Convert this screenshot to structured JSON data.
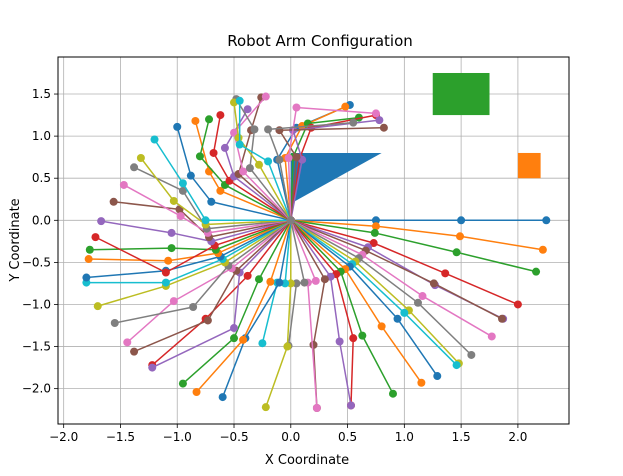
{
  "chart_data": {
    "type": "line",
    "title": "Robot Arm Configuration",
    "xlabel": "X Coordinate",
    "ylabel": "Y Coordinate",
    "xlim": [
      -2.05,
      2.45
    ],
    "ylim": [
      -2.42,
      1.94
    ],
    "x_ticks": [
      -2.0,
      -1.5,
      -1.0,
      -0.5,
      0.0,
      0.5,
      1.0,
      1.5,
      2.0
    ],
    "x_tick_labels": [
      "−2.0",
      "−1.5",
      "−1.0",
      "−0.5",
      "0.0",
      "0.5",
      "1.0",
      "1.5",
      "2.0"
    ],
    "y_ticks": [
      -2.0,
      -1.5,
      -1.0,
      -0.5,
      0.0,
      0.5,
      1.0,
      1.5
    ],
    "y_tick_labels": [
      "−2.0",
      "−1.5",
      "−1.0",
      "−0.5",
      "0.0",
      "0.5",
      "1.0",
      "1.5"
    ],
    "grid": true,
    "palette": [
      "#1f77b4",
      "#ff7f0e",
      "#2ca02c",
      "#d62728",
      "#9467bd",
      "#8c564b",
      "#e377c2",
      "#7f7f7f",
      "#bcbd22",
      "#17becf"
    ],
    "obstacles": [
      {
        "shape": "triangle",
        "color": "#1f77b4",
        "points": [
          [
            0.0,
            0.2
          ],
          [
            0.0,
            0.8
          ],
          [
            0.8,
            0.8
          ]
        ]
      },
      {
        "shape": "rect",
        "color": "#2ca02c",
        "x": 1.25,
        "y": 1.25,
        "w": 0.5,
        "h": 0.5
      },
      {
        "shape": "rect",
        "color": "#ff7f0e",
        "x": 2.0,
        "y": 0.5,
        "w": 0.2,
        "h": 0.3
      }
    ],
    "series": [
      {
        "values": [
          [
            0,
            0
          ],
          [
            0.75,
            0.0
          ],
          [
            1.5,
            0.0
          ],
          [
            2.25,
            0.0
          ]
        ]
      },
      {
        "values": [
          [
            0,
            0
          ],
          [
            0.75,
            -0.07
          ],
          [
            1.49,
            -0.19
          ],
          [
            2.22,
            -0.35
          ]
        ]
      },
      {
        "values": [
          [
            0,
            0
          ],
          [
            0.74,
            -0.15
          ],
          [
            1.46,
            -0.38
          ],
          [
            2.16,
            -0.61
          ]
        ]
      },
      {
        "values": [
          [
            0,
            0
          ],
          [
            0.73,
            -0.27
          ],
          [
            1.36,
            -0.63
          ],
          [
            2.0,
            -1.0
          ]
        ]
      },
      {
        "values": [
          [
            0,
            0
          ],
          [
            0.68,
            -0.32
          ],
          [
            1.27,
            -0.77
          ],
          [
            1.87,
            -1.17
          ]
        ]
      },
      {
        "values": [
          [
            0,
            0
          ],
          [
            0.66,
            -0.36
          ],
          [
            1.26,
            -0.75
          ],
          [
            1.86,
            -1.17
          ]
        ]
      },
      {
        "values": [
          [
            0,
            0
          ],
          [
            0.63,
            -0.41
          ],
          [
            1.16,
            -0.9
          ],
          [
            1.77,
            -1.38
          ]
        ]
      },
      {
        "values": [
          [
            0,
            0
          ],
          [
            0.6,
            -0.45
          ],
          [
            1.12,
            -0.98
          ],
          [
            1.59,
            -1.6
          ]
        ]
      },
      {
        "values": [
          [
            0,
            0
          ],
          [
            0.57,
            -0.49
          ],
          [
            1.04,
            -1.07
          ],
          [
            1.48,
            -1.7
          ]
        ]
      },
      {
        "values": [
          [
            0,
            0
          ],
          [
            0.54,
            -0.52
          ],
          [
            1.0,
            -1.1
          ],
          [
            1.46,
            -1.72
          ]
        ]
      },
      {
        "values": [
          [
            0,
            0
          ],
          [
            0.52,
            -0.55
          ],
          [
            0.94,
            -1.17
          ],
          [
            1.29,
            -1.85
          ]
        ]
      },
      {
        "values": [
          [
            0,
            0
          ],
          [
            0.48,
            -0.58
          ],
          [
            0.8,
            -1.26
          ],
          [
            1.15,
            -1.93
          ]
        ]
      },
      {
        "values": [
          [
            0,
            0
          ],
          [
            0.44,
            -0.61
          ],
          [
            0.63,
            -1.37
          ],
          [
            0.9,
            -2.06
          ]
        ]
      },
      {
        "values": [
          [
            0,
            0
          ],
          [
            0.4,
            -0.64
          ],
          [
            0.55,
            -1.4
          ],
          [
            0.53,
            -2.2
          ]
        ]
      },
      {
        "values": [
          [
            0,
            0
          ],
          [
            0.35,
            -0.67
          ],
          [
            0.43,
            -1.44
          ],
          [
            0.53,
            -2.2
          ]
        ]
      },
      {
        "values": [
          [
            0,
            0
          ],
          [
            0.3,
            -0.7
          ],
          [
            0.2,
            -1.48
          ],
          [
            0.23,
            -2.23
          ]
        ]
      },
      {
        "values": [
          [
            0,
            0
          ],
          [
            0.22,
            -0.72
          ],
          [
            0.15,
            -0.74
          ],
          [
            0.23,
            -2.23
          ]
        ]
      },
      {
        "values": [
          [
            0,
            0
          ],
          [
            0.12,
            -0.74
          ],
          [
            0.05,
            -0.75
          ],
          [
            -0.02,
            -1.49
          ]
        ]
      },
      {
        "values": [
          [
            0,
            0
          ],
          [
            0.0,
            -0.75
          ],
          [
            -0.03,
            -1.5
          ],
          [
            -0.22,
            -2.22
          ]
        ]
      },
      {
        "values": [
          [
            0,
            0
          ],
          [
            -0.05,
            -0.75
          ],
          [
            -0.12,
            -0.74
          ],
          [
            -0.25,
            -1.46
          ]
        ]
      },
      {
        "values": [
          [
            0,
            0
          ],
          [
            -0.1,
            -0.74
          ],
          [
            -0.4,
            -1.4
          ],
          [
            -0.6,
            -2.1
          ]
        ]
      },
      {
        "values": [
          [
            0,
            0
          ],
          [
            -0.18,
            -0.73
          ],
          [
            -0.42,
            -1.42
          ],
          [
            -0.83,
            -2.04
          ]
        ]
      },
      {
        "values": [
          [
            0,
            0
          ],
          [
            -0.28,
            -0.7
          ],
          [
            -0.5,
            -1.4
          ],
          [
            -0.95,
            -1.94
          ]
        ]
      },
      {
        "values": [
          [
            0,
            0
          ],
          [
            -0.38,
            -0.66
          ],
          [
            -0.75,
            -1.17
          ],
          [
            -1.22,
            -1.72
          ]
        ]
      },
      {
        "values": [
          [
            0,
            0
          ],
          [
            -0.45,
            -0.62
          ],
          [
            -0.5,
            -1.28
          ],
          [
            -1.22,
            -1.75
          ]
        ]
      },
      {
        "values": [
          [
            0,
            0
          ],
          [
            -0.48,
            -0.6
          ],
          [
            -0.73,
            -1.19
          ],
          [
            -1.38,
            -1.56
          ]
        ]
      },
      {
        "values": [
          [
            0,
            0
          ],
          [
            -0.52,
            -0.57
          ],
          [
            -1.03,
            -0.96
          ],
          [
            -1.44,
            -1.45
          ]
        ]
      },
      {
        "values": [
          [
            0,
            0
          ],
          [
            -0.55,
            -0.54
          ],
          [
            -0.86,
            -1.03
          ],
          [
            -1.55,
            -1.22
          ]
        ]
      },
      {
        "values": [
          [
            0,
            0
          ],
          [
            -0.58,
            -0.5
          ],
          [
            -1.1,
            -0.78
          ],
          [
            -1.7,
            -1.02
          ]
        ]
      },
      {
        "values": [
          [
            0,
            0
          ],
          [
            -0.6,
            -0.46
          ],
          [
            -1.1,
            -0.74
          ],
          [
            -1.8,
            -0.74
          ]
        ]
      },
      {
        "values": [
          [
            0,
            0
          ],
          [
            -0.62,
            -0.43
          ],
          [
            -1.1,
            -0.6
          ],
          [
            -1.8,
            -0.68
          ]
        ]
      },
      {
        "values": [
          [
            0,
            0
          ],
          [
            -0.64,
            -0.39
          ],
          [
            -1.08,
            -0.48
          ],
          [
            -1.78,
            -0.46
          ]
        ]
      },
      {
        "values": [
          [
            0,
            0
          ],
          [
            -0.66,
            -0.35
          ],
          [
            -1.05,
            -0.33
          ],
          [
            -1.77,
            -0.35
          ]
        ]
      },
      {
        "values": [
          [
            0,
            0
          ],
          [
            -0.67,
            -0.3
          ],
          [
            -1.1,
            -0.62
          ],
          [
            -1.72,
            -0.2
          ]
        ]
      },
      {
        "values": [
          [
            0,
            0
          ],
          [
            -0.7,
            -0.25
          ],
          [
            -1.05,
            -0.15
          ],
          [
            -1.67,
            -0.01
          ]
        ]
      },
      {
        "values": [
          [
            0,
            0
          ],
          [
            -0.72,
            -0.2
          ],
          [
            -0.98,
            0.13
          ],
          [
            -1.56,
            0.22
          ]
        ]
      },
      {
        "values": [
          [
            0,
            0
          ],
          [
            -0.73,
            -0.15
          ],
          [
            -0.97,
            0.05
          ],
          [
            -1.47,
            0.42
          ]
        ]
      },
      {
        "values": [
          [
            0,
            0
          ],
          [
            -0.74,
            -0.1
          ],
          [
            -0.95,
            0.35
          ],
          [
            -1.38,
            0.63
          ]
        ]
      },
      {
        "values": [
          [
            0,
            0
          ],
          [
            -0.75,
            -0.05
          ],
          [
            -1.03,
            0.23
          ],
          [
            -1.32,
            0.74
          ]
        ]
      },
      {
        "values": [
          [
            0,
            0
          ],
          [
            -0.75,
            0.0
          ],
          [
            -0.95,
            0.44
          ],
          [
            -1.2,
            0.96
          ]
        ]
      },
      {
        "values": [
          [
            0,
            0
          ],
          [
            -0.7,
            0.22
          ],
          [
            -0.88,
            0.53
          ],
          [
            -1.0,
            1.11
          ]
        ]
      },
      {
        "values": [
          [
            0,
            0
          ],
          [
            -0.62,
            0.35
          ],
          [
            -0.72,
            0.58
          ],
          [
            -0.84,
            1.18
          ]
        ]
      },
      {
        "values": [
          [
            0,
            0
          ],
          [
            -0.58,
            0.42
          ],
          [
            -0.8,
            0.76
          ],
          [
            -0.72,
            1.2
          ]
        ]
      },
      {
        "values": [
          [
            0,
            0
          ],
          [
            -0.54,
            0.47
          ],
          [
            -0.68,
            0.8
          ],
          [
            -0.62,
            1.25
          ]
        ]
      },
      {
        "values": [
          [
            0,
            0
          ],
          [
            -0.5,
            0.52
          ],
          [
            -0.58,
            0.86
          ],
          [
            -0.38,
            1.32
          ]
        ]
      },
      {
        "values": [
          [
            0,
            0
          ],
          [
            -0.46,
            0.55
          ],
          [
            -0.35,
            1.07
          ],
          [
            -0.26,
            1.46
          ]
        ]
      },
      {
        "values": [
          [
            0,
            0
          ],
          [
            -0.42,
            0.58
          ],
          [
            -0.5,
            1.04
          ],
          [
            -0.22,
            1.47
          ]
        ]
      },
      {
        "values": [
          [
            0,
            0
          ],
          [
            -0.36,
            0.62
          ],
          [
            -0.32,
            1.08
          ],
          [
            -0.48,
            1.44
          ]
        ]
      },
      {
        "values": [
          [
            0,
            0
          ],
          [
            -0.28,
            0.66
          ],
          [
            -0.46,
            0.98
          ],
          [
            -0.5,
            1.4
          ]
        ]
      },
      {
        "values": [
          [
            0,
            0
          ],
          [
            -0.2,
            0.7
          ],
          [
            -0.45,
            0.9
          ],
          [
            -0.45,
            1.42
          ]
        ]
      },
      {
        "values": [
          [
            0,
            0
          ],
          [
            -0.12,
            0.72
          ],
          [
            0.05,
            1.1
          ],
          [
            0.52,
            1.37
          ]
        ]
      },
      {
        "values": [
          [
            0,
            0
          ],
          [
            -0.05,
            0.74
          ],
          [
            0.1,
            1.12
          ],
          [
            0.48,
            1.35
          ]
        ]
      },
      {
        "values": [
          [
            0,
            0
          ],
          [
            0.02,
            0.75
          ],
          [
            0.15,
            1.15
          ],
          [
            0.6,
            1.22
          ]
        ]
      },
      {
        "values": [
          [
            0,
            0
          ],
          [
            0.08,
            0.74
          ],
          [
            0.18,
            1.1
          ],
          [
            0.75,
            1.25
          ]
        ]
      },
      {
        "values": [
          [
            0,
            0
          ],
          [
            0.1,
            0.72
          ],
          [
            0.02,
            1.07
          ],
          [
            0.78,
            1.19
          ]
        ]
      },
      {
        "values": [
          [
            0,
            0
          ],
          [
            0.05,
            0.75
          ],
          [
            -0.1,
            1.07
          ],
          [
            0.82,
            1.1
          ]
        ]
      },
      {
        "values": [
          [
            0,
            0
          ],
          [
            -0.02,
            0.74
          ],
          [
            0.05,
            1.34
          ],
          [
            0.75,
            1.27
          ]
        ]
      },
      {
        "values": [
          [
            0,
            0
          ],
          [
            -0.1,
            0.72
          ],
          [
            -0.2,
            1.08
          ],
          [
            0.55,
            1.16
          ]
        ]
      }
    ]
  }
}
